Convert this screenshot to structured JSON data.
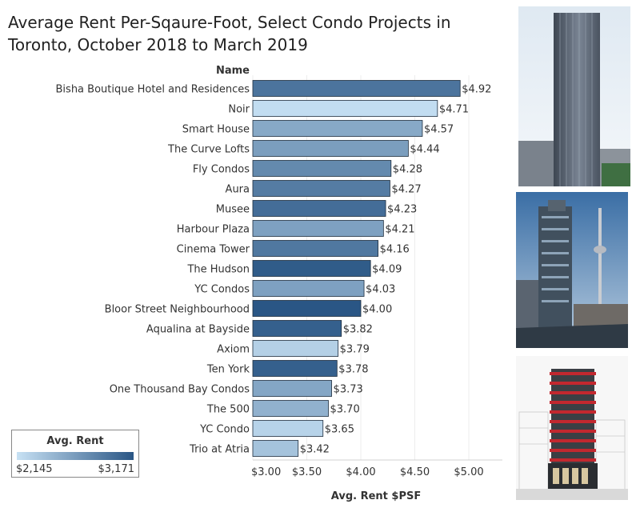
{
  "title": "Average Rent Per-Sqaure-Foot, Select Condo Projects in Toronto, October 2018 to March 2019",
  "chart_data": {
    "type": "bar",
    "orientation": "horizontal",
    "title": "Average Rent Per-Sqaure-Foot, Select Condo Projects in Toronto, October 2018 to March 2019",
    "category_header": "Name",
    "xlabel": "Avg. Rent $PSF",
    "ylabel": "",
    "xlim": [
      3.0,
      5.6
    ],
    "x_ticks": [
      "$3.00",
      "$3.50",
      "$4.00",
      "$4.50",
      "$5.00"
    ],
    "x_tick_values": [
      3.0,
      3.5,
      4.0,
      4.5,
      5.0
    ],
    "grid": true,
    "categories": [
      "Bisha Boutique Hotel and Residences",
      "Noir",
      "Smart House",
      "The Curve Lofts",
      "Fly Condos",
      "Aura",
      "Musee",
      "Harbour Plaza",
      "Cinema Tower",
      "The Hudson",
      "YC Condos",
      "Bloor Street Neighbourhood",
      "Aqualina at Bayside",
      "Axiom",
      "Ten York",
      "One Thousand Bay Condos",
      "The 500",
      "YC Condo",
      "Trio at Atria"
    ],
    "values": [
      4.92,
      4.71,
      4.57,
      4.44,
      4.28,
      4.27,
      4.23,
      4.21,
      4.16,
      4.09,
      4.03,
      4.0,
      3.82,
      3.79,
      3.78,
      3.73,
      3.7,
      3.65,
      3.42
    ],
    "value_labels": [
      "$4.92",
      "$4.71",
      "$4.57",
      "$4.44",
      "$4.28",
      "$4.27",
      "$4.23",
      "$4.21",
      "$4.16",
      "$4.09",
      "$4.03",
      "$4.00",
      "$3.82",
      "$3.79",
      "$3.78",
      "$3.73",
      "$3.70",
      "$3.65",
      "$3.42"
    ],
    "color_values": [
      2950,
      2175,
      2560,
      2640,
      2790,
      2890,
      3000,
      2620,
      2920,
      3130,
      2620,
      3171,
      3100,
      2270,
      3100,
      2580,
      2500,
      2250,
      2370
    ],
    "color_legend": {
      "title": "Avg. Rent",
      "min_label": "$2,145",
      "max_label": "$3,171",
      "min": 2145,
      "max": 3171,
      "color_low": "#c7e1f4",
      "color_high": "#2a5685"
    },
    "legend_placement": "bottom-left"
  },
  "colors": {
    "bar_border": "#1f2d3d",
    "grid": "#ececec",
    "text": "#333333"
  }
}
